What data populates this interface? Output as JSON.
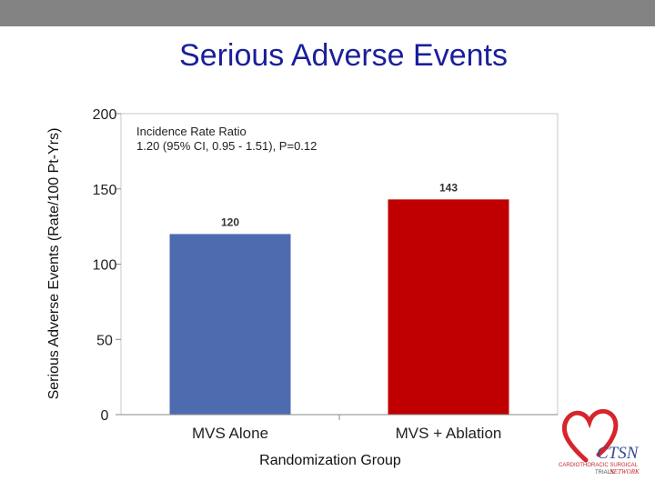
{
  "slide": {
    "title": "Serious Adverse Events"
  },
  "chart_data": {
    "type": "bar",
    "categories": [
      "MVS Alone",
      "MVS + Ablation"
    ],
    "values": [
      120,
      143
    ],
    "data_labels": [
      "120",
      "143"
    ],
    "bar_colors": [
      "#4f6bb0",
      "#c00000"
    ],
    "ylabel": "Serious Adverse Events (Rate/100 Pt-Yrs)",
    "xlabel": "Randomization Group",
    "ylim": [
      0,
      200
    ],
    "yticks": [
      "0",
      "50",
      "100",
      "150",
      "200"
    ],
    "annotation": {
      "line1": "Incidence Rate Ratio",
      "line2": "1.20 (95% CI, 0.95 - 1.51), P=0.12"
    }
  },
  "logo": {
    "name": "CTSN",
    "line1": "CARDIOTHORACIC SURGICAL",
    "line2": "TRIALS",
    "line3": "NETWORK",
    "heart_color": "#d6252c"
  }
}
